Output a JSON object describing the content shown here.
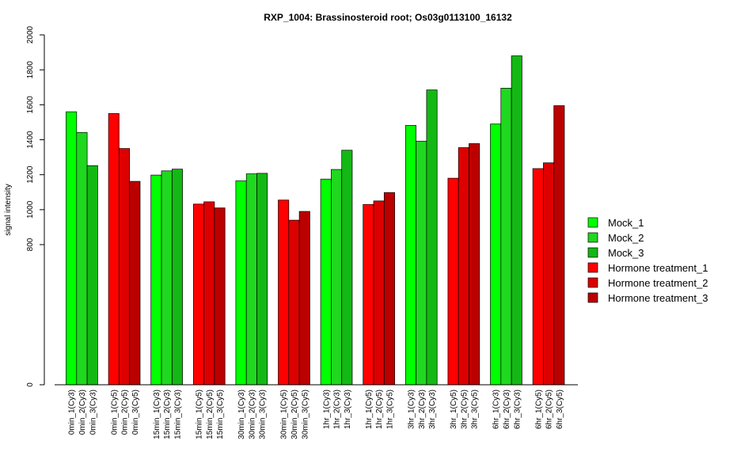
{
  "chart_data": {
    "type": "bar",
    "title": "RXP_1004: Brassinosteroid root; Os03g0113100_16132",
    "ylabel": "signal intensity",
    "xlabel": "",
    "y_axis": {
      "ticks": [
        0,
        800,
        1000,
        1200,
        1400,
        1600,
        1800,
        2000
      ],
      "tick_labels": [
        "0",
        "800",
        "1000",
        "1200",
        "1400",
        "1600",
        "1800",
        "2000"
      ]
    },
    "categories": [
      "0min_1(Cy3)",
      "0min_2(Cy3)",
      "0min_3(Cy3)",
      "0min_1(Cy5)",
      "0min_2(Cy5)",
      "0min_3(Cy5)",
      "15min_1(Cy3)",
      "15min_2(Cy3)",
      "15min_3(Cy3)",
      "15min_1(Cy5)",
      "15min_2(Cy5)",
      "15min_3(Cy5)",
      "30min_1(Cy3)",
      "30min_2(Cy3)",
      "30min_3(Cy3)",
      "30min_1(Cy5)",
      "30min_2(Cy5)",
      "30min_3(Cy5)",
      "1hr_1(Cy3)",
      "1hr_2(Cy3)",
      "1hr_3(Cy3)",
      "1hr_1(Cy5)",
      "1hr_2(Cy5)",
      "1hr_3(Cy5)",
      "3hr_1(Cy3)",
      "3hr_2(Cy3)",
      "3hr_3(Cy3)",
      "3hr_1(Cy5)",
      "3hr_2(Cy5)",
      "3hr_3(Cy5)",
      "6hr_1(Cy3)",
      "6hr_2(Cy3)",
      "6hr_3(Cy3)",
      "6hr_1(Cy5)",
      "6hr_2(Cy5)",
      "6hr_3(Cy5)"
    ],
    "values": [
      1560,
      1442,
      1252,
      1550,
      1350,
      1162,
      1198,
      1222,
      1232,
      1032,
      1045,
      1010,
      1165,
      1205,
      1208,
      1055,
      940,
      990,
      1175,
      1230,
      1340,
      1030,
      1050,
      1098,
      1482,
      1392,
      1685,
      1180,
      1355,
      1378,
      1490,
      1695,
      1880,
      1235,
      1268,
      1595
    ],
    "bar_series_index": [
      0,
      1,
      2,
      3,
      4,
      5,
      0,
      1,
      2,
      3,
      4,
      5,
      0,
      1,
      2,
      3,
      4,
      5,
      0,
      1,
      2,
      3,
      4,
      5,
      0,
      1,
      2,
      3,
      4,
      5,
      0,
      1,
      2,
      3,
      4,
      5
    ],
    "legend": {
      "position": "right",
      "items": [
        {
          "name": "Mock_1",
          "color": "#00ff00"
        },
        {
          "name": "Mock_2",
          "color": "#1fd81f"
        },
        {
          "name": "Mock_3",
          "color": "#14b814"
        },
        {
          "name": "Hormone treatment_1",
          "color": "#ff0000"
        },
        {
          "name": "Hormone treatment_2",
          "color": "#dd0000"
        },
        {
          "name": "Hormone treatment_3",
          "color": "#bb0000"
        }
      ]
    },
    "grid": false
  }
}
